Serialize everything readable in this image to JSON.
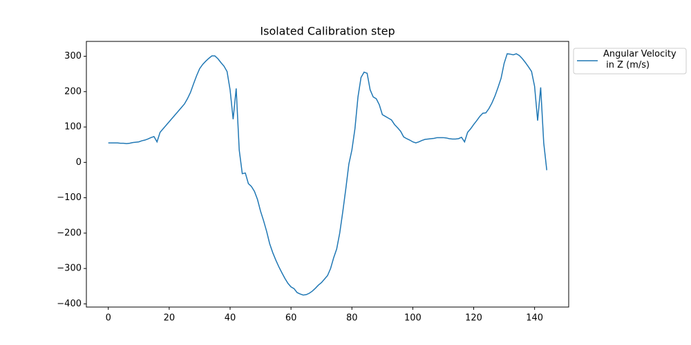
{
  "chart_data": {
    "type": "line",
    "title": "Isolated Calibration step",
    "x": [
      0,
      1,
      2,
      3,
      4,
      5,
      6,
      7,
      8,
      9,
      10,
      11,
      12,
      13,
      14,
      15,
      16,
      17,
      18,
      19,
      20,
      21,
      22,
      23,
      24,
      25,
      26,
      27,
      28,
      29,
      30,
      31,
      32,
      33,
      34,
      35,
      36,
      37,
      38,
      39,
      40,
      41,
      42,
      43,
      44,
      45,
      46,
      47,
      48,
      49,
      50,
      51,
      52,
      53,
      54,
      55,
      56,
      57,
      58,
      59,
      60,
      61,
      62,
      63,
      64,
      65,
      66,
      67,
      68,
      69,
      70,
      71,
      72,
      73,
      74,
      75,
      76,
      77,
      78,
      79,
      80,
      81,
      82,
      83,
      84,
      85,
      86,
      87,
      88,
      89,
      90,
      91,
      92,
      93,
      94,
      95,
      96,
      97,
      98,
      99,
      100,
      101,
      102,
      103,
      104,
      105,
      106,
      107,
      108,
      109,
      110,
      111,
      112,
      113,
      114,
      115,
      116,
      117,
      118,
      119,
      120,
      121,
      122,
      123,
      124,
      125,
      126,
      127,
      128,
      129,
      130,
      131,
      132,
      133,
      134,
      135,
      136,
      137,
      138,
      139,
      140,
      141,
      142,
      143,
      144
    ],
    "series": [
      {
        "name": "Angular Velocity\n in Z (m/s)",
        "color": "#1f77b4",
        "values": [
          55,
          55,
          55,
          55,
          54,
          54,
          53,
          54,
          56,
          57,
          58,
          61,
          63,
          66,
          70,
          73,
          58,
          85,
          95,
          105,
          115,
          125,
          135,
          145,
          155,
          165,
          180,
          198,
          222,
          245,
          265,
          277,
          286,
          294,
          301,
          301,
          293,
          282,
          272,
          257,
          205,
          122,
          209,
          35,
          -32,
          -30,
          -60,
          -68,
          -82,
          -105,
          -138,
          -165,
          -195,
          -230,
          -255,
          -276,
          -295,
          -312,
          -328,
          -342,
          -352,
          -357,
          -368,
          -372,
          -375,
          -374,
          -370,
          -364,
          -356,
          -347,
          -340,
          -330,
          -320,
          -300,
          -270,
          -245,
          -200,
          -140,
          -75,
          -5,
          35,
          95,
          185,
          240,
          255,
          252,
          205,
          185,
          180,
          163,
          135,
          130,
          125,
          120,
          107,
          98,
          88,
          72,
          67,
          63,
          58,
          55,
          58,
          62,
          65,
          66,
          67,
          68,
          70,
          70,
          70,
          69,
          67,
          66,
          66,
          67,
          71,
          58,
          85,
          95,
          107,
          118,
          130,
          139,
          140,
          152,
          168,
          188,
          212,
          238,
          280,
          307,
          306,
          304,
          307,
          302,
          293,
          282,
          270,
          257,
          215,
          118,
          212,
          55,
          -22
        ]
      }
    ],
    "xlim": [
      -7.2,
      151.2
    ],
    "ylim": [
      -409,
      342
    ],
    "xticks": [
      0,
      20,
      40,
      60,
      80,
      100,
      120,
      140
    ],
    "yticks": [
      {
        "value": -400,
        "label": "−400"
      },
      {
        "value": -300,
        "label": "−300"
      },
      {
        "value": -200,
        "label": "−200"
      },
      {
        "value": -100,
        "label": "−100"
      },
      0,
      100,
      200,
      300
    ],
    "legend": "outside-upper-right"
  }
}
